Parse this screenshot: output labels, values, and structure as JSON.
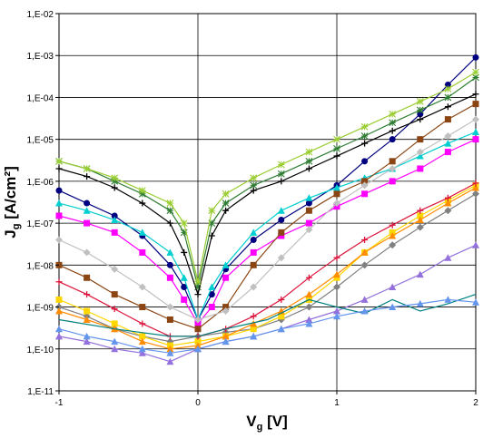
{
  "chart_data": {
    "type": "line",
    "title": "",
    "xlabel_main": "V",
    "xlabel_sub": "g",
    "xlabel_unit": " [V]",
    "ylabel_main": "J",
    "ylabel_sub": "g",
    "ylabel_unit": " [A/cm²]",
    "xlim": [
      -1,
      2
    ],
    "ylim": [
      1e-11,
      0.01
    ],
    "y_scale": "log",
    "grid": true,
    "legend": "none",
    "x_ticks": [
      -1,
      0,
      1,
      2
    ],
    "x_tick_labels": [
      "-1",
      "0",
      "1",
      "2"
    ],
    "y_ticks": [
      1e-11,
      1e-10,
      1e-09,
      1e-08,
      1e-07,
      1e-06,
      1e-05,
      0.0001,
      0.001,
      0.01
    ],
    "y_tick_labels": [
      "1,E-11",
      "1,E-10",
      "1,E-09",
      "1,E-08",
      "1,E-07",
      "1,E-06",
      "1,E-05",
      "1,E-04",
      "1,E-03",
      "1,E-02"
    ],
    "series": [
      {
        "color": "#000080",
        "marker": "circle",
        "x": [
          -1,
          -0.8,
          -0.6,
          -0.4,
          -0.2,
          -0.1,
          0,
          0.1,
          0.2,
          0.4,
          0.6,
          0.8,
          1,
          1.2,
          1.4,
          1.6,
          1.8,
          2
        ],
        "y": [
          6e-07,
          3e-07,
          1.5e-07,
          5e-08,
          1e-08,
          3e-09,
          5e-10,
          2e-09,
          8e-09,
          4e-08,
          1.2e-07,
          3e-07,
          8e-07,
          3e-06,
          1e-05,
          4e-05,
          0.0002,
          0.0009
        ]
      },
      {
        "color": "#2e7d32",
        "marker": "star",
        "x": [
          -1,
          -0.8,
          -0.6,
          -0.4,
          -0.2,
          -0.1,
          0,
          0.1,
          0.2,
          0.4,
          0.6,
          0.8,
          1,
          1.2,
          1.4,
          1.6,
          1.8,
          2
        ],
        "y": [
          3e-06,
          2e-06,
          1e-06,
          5e-07,
          2e-07,
          6e-08,
          3e-09,
          1e-07,
          3e-07,
          8e-07,
          1.5e-06,
          3e-06,
          6e-06,
          1.2e-05,
          2.5e-05,
          5e-05,
          0.0001,
          0.0003
        ]
      },
      {
        "color": "#000000",
        "marker": "plus",
        "x": [
          -1,
          -0.8,
          -0.6,
          -0.4,
          -0.2,
          -0.1,
          0,
          0.1,
          0.2,
          0.4,
          0.6,
          0.8,
          1,
          1.2,
          1.4,
          1.6,
          1.8,
          2
        ],
        "y": [
          2e-06,
          1.3e-06,
          7e-07,
          3e-07,
          1e-07,
          2e-08,
          2e-09,
          5e-08,
          2e-07,
          6e-07,
          1e-06,
          2e-06,
          4e-06,
          8e-06,
          1.6e-05,
          3e-05,
          6e-05,
          0.00012
        ]
      },
      {
        "color": "#9acd32",
        "marker": "star",
        "x": [
          -1,
          -0.8,
          -0.6,
          -0.4,
          -0.2,
          -0.1,
          0,
          0.1,
          0.2,
          0.4,
          0.6,
          0.8,
          1,
          1.2,
          1.4,
          1.6,
          1.8,
          2
        ],
        "y": [
          3e-06,
          2e-06,
          1.2e-06,
          6e-07,
          3e-07,
          1e-07,
          4e-09,
          2e-07,
          5e-07,
          1.2e-06,
          2.5e-06,
          5e-06,
          1e-05,
          2e-05,
          4e-05,
          8e-05,
          0.00016,
          0.0004
        ]
      },
      {
        "color": "#00ced1",
        "marker": "triangle",
        "x": [
          -1,
          -0.8,
          -0.6,
          -0.4,
          -0.2,
          -0.1,
          0,
          0.1,
          0.2,
          0.4,
          0.6,
          0.8,
          1,
          1.2,
          1.4,
          1.6,
          1.8,
          2
        ],
        "y": [
          3e-07,
          2e-07,
          1.2e-07,
          6e-08,
          2e-08,
          5e-09,
          5e-10,
          3e-09,
          1e-08,
          6e-08,
          2e-07,
          4e-07,
          7e-07,
          1.2e-06,
          2e-06,
          4e-06,
          8e-06,
          1.5e-05
        ]
      },
      {
        "color": "#ff00ff",
        "marker": "square",
        "x": [
          -1,
          -0.8,
          -0.6,
          -0.4,
          -0.2,
          -0.1,
          0,
          0.1,
          0.2,
          0.4,
          0.6,
          0.8,
          1,
          1.2,
          1.4,
          1.6,
          1.8,
          2
        ],
        "y": [
          1.5e-07,
          1e-07,
          6e-08,
          2e-08,
          5e-09,
          1.5e-09,
          4e-10,
          1e-09,
          5e-09,
          2e-08,
          5e-08,
          1e-07,
          2.5e-07,
          5e-07,
          1e-06,
          2e-06,
          5e-06,
          1e-05
        ]
      },
      {
        "color": "#8b4513",
        "marker": "square",
        "x": [
          -1,
          -0.8,
          -0.6,
          -0.4,
          -0.2,
          0,
          0.2,
          0.4,
          0.6,
          0.8,
          1,
          1.2,
          1.4,
          1.6,
          1.8,
          2
        ],
        "y": [
          1e-08,
          5e-09,
          2e-09,
          1e-09,
          5e-10,
          3e-10,
          1e-09,
          1e-08,
          6e-08,
          2e-07,
          5e-07,
          1e-06,
          3e-06,
          1e-05,
          3e-05,
          7e-05
        ]
      },
      {
        "color": "#c0c0c0",
        "marker": "diamond",
        "x": [
          -1,
          -0.8,
          -0.6,
          -0.4,
          -0.2,
          0,
          0.2,
          0.4,
          0.6,
          0.8,
          1,
          1.2,
          1.4,
          1.6,
          1.8,
          2
        ],
        "y": [
          4e-08,
          2e-08,
          8e-09,
          3e-09,
          1e-09,
          5e-10,
          8e-10,
          3e-09,
          1.5e-08,
          7e-08,
          3e-07,
          8e-07,
          2e-06,
          5e-06,
          1.2e-05,
          3e-05
        ]
      },
      {
        "color": "#808080",
        "marker": "diamond",
        "x": [
          -1,
          -0.8,
          -0.6,
          -0.4,
          -0.2,
          0,
          0.2,
          0.4,
          0.6,
          0.8,
          1,
          1.2,
          1.4,
          1.6,
          1.8,
          2
        ],
        "y": [
          1e-09,
          6e-10,
          3e-10,
          2e-10,
          1.5e-10,
          2e-10,
          2.5e-10,
          3e-10,
          5e-10,
          1e-09,
          3e-09,
          1e-08,
          3e-08,
          8e-08,
          2e-07,
          5e-07
        ]
      },
      {
        "color": "#ffd700",
        "marker": "square",
        "x": [
          -1,
          -0.8,
          -0.6,
          -0.4,
          -0.2,
          0,
          0.2,
          0.4,
          0.6,
          0.8,
          1,
          1.2,
          1.4,
          1.6,
          1.8,
          2
        ],
        "y": [
          1.5e-09,
          8e-10,
          4e-10,
          2e-10,
          1.2e-10,
          1.5e-10,
          2e-10,
          3e-10,
          6e-10,
          1.5e-09,
          5e-09,
          2e-08,
          6e-08,
          1.5e-07,
          3.5e-07,
          8e-07
        ]
      },
      {
        "color": "#9370db",
        "marker": "triangle",
        "x": [
          -1,
          -0.8,
          -0.6,
          -0.4,
          -0.2,
          0,
          0.2,
          0.4,
          0.6,
          0.8,
          1,
          1.2,
          1.4,
          1.6,
          1.8,
          2
        ],
        "y": [
          2e-10,
          1.5e-10,
          1e-10,
          8e-11,
          5e-11,
          1e-10,
          1.5e-10,
          2e-10,
          3e-10,
          5e-10,
          8e-10,
          1.5e-09,
          3e-09,
          6e-09,
          1.5e-08,
          3e-08
        ]
      },
      {
        "color": "#ff8c00",
        "marker": "triangle",
        "x": [
          -1,
          -0.8,
          -0.6,
          -0.4,
          -0.2,
          0,
          0.2,
          0.4,
          0.6,
          0.8,
          1,
          1.2,
          1.4,
          1.6,
          1.8,
          2
        ],
        "y": [
          8e-10,
          5e-10,
          3e-10,
          1.5e-10,
          1e-10,
          1.2e-10,
          2e-10,
          4e-10,
          8e-10,
          2e-09,
          6e-09,
          2e-08,
          5e-08,
          1.2e-07,
          3e-07,
          7e-07
        ]
      },
      {
        "color": "#dc143c",
        "marker": "plus",
        "x": [
          -1,
          -0.8,
          -0.6,
          -0.4,
          -0.2,
          0,
          0.2,
          0.4,
          0.6,
          0.8,
          1,
          1.2,
          1.4,
          1.6,
          1.8,
          2
        ],
        "y": [
          4e-09,
          2e-09,
          9e-10,
          4e-10,
          2e-10,
          2e-10,
          3e-10,
          6e-10,
          1.5e-09,
          5e-09,
          1.5e-08,
          4e-08,
          9e-08,
          2e-07,
          4e-07,
          9e-07
        ]
      },
      {
        "color": "#008080",
        "marker": "none",
        "x": [
          -1,
          -0.6,
          -0.2,
          0,
          0.2,
          0.5,
          0.8,
          1,
          1.2,
          1.4,
          1.6,
          1.8,
          2
        ],
        "y": [
          5e-10,
          3e-10,
          2e-10,
          2e-10,
          3e-10,
          5e-10,
          1.5e-09,
          1e-09,
          7e-10,
          1.5e-09,
          8e-10,
          1.2e-09,
          2e-09
        ]
      },
      {
        "color": "#6495ed",
        "marker": "triangle",
        "x": [
          -1,
          -0.8,
          -0.6,
          -0.4,
          -0.2,
          0,
          0.2,
          0.4,
          0.6,
          0.8,
          1,
          1.2,
          1.4,
          1.6,
          1.8,
          2
        ],
        "y": [
          3e-10,
          2e-10,
          1.5e-10,
          1e-10,
          8e-11,
          1e-10,
          1.5e-10,
          2e-10,
          3e-10,
          4e-10,
          6e-10,
          8e-10,
          1e-09,
          1.2e-09,
          1.5e-09,
          1.3e-09
        ]
      }
    ]
  }
}
